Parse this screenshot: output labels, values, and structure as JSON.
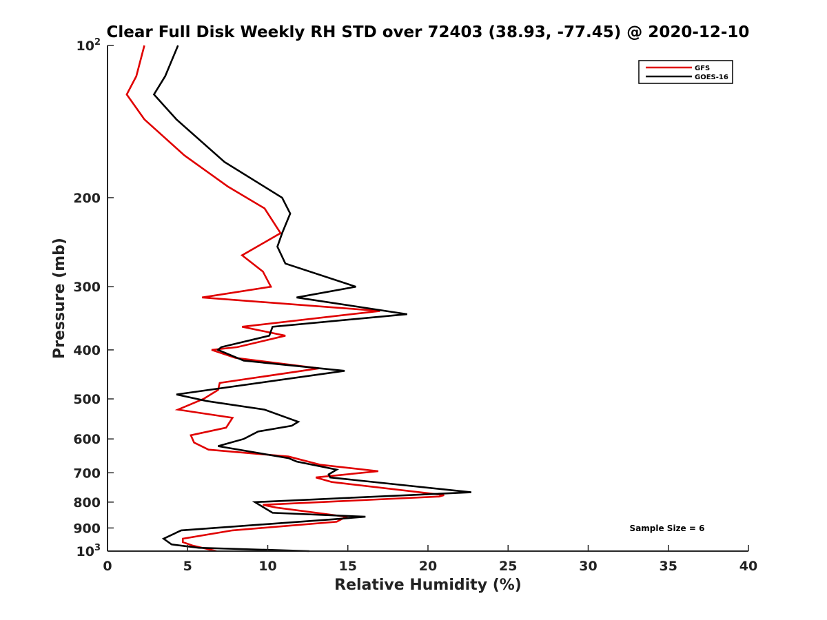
{
  "chart_data": {
    "type": "line",
    "title": "Clear Full Disk Weekly RH STD over 72403 (38.93, -77.45) @ 2020-12-10",
    "xlabel": "Relative Humidity (%)",
    "ylabel": "Pressure (mb)",
    "xlim": [
      0,
      40
    ],
    "ylim": [
      1000,
      100
    ],
    "y_scale": "log",
    "x_ticks": [
      "0",
      "5",
      "10",
      "15",
      "20",
      "25",
      "30",
      "35",
      "40"
    ],
    "y_ticks": [
      {
        "value": 100,
        "base": "10",
        "exp": "2"
      },
      {
        "value": 200,
        "label": "200"
      },
      {
        "value": 300,
        "label": "300"
      },
      {
        "value": 400,
        "label": "400"
      },
      {
        "value": 500,
        "label": "500"
      },
      {
        "value": 600,
        "label": "600"
      },
      {
        "value": 700,
        "label": "700"
      },
      {
        "value": 800,
        "label": "800"
      },
      {
        "value": 900,
        "label": "900"
      },
      {
        "value": 1000,
        "base": "10",
        "exp": "3"
      }
    ],
    "legend_position": "top-right",
    "grid": false,
    "annotation": "Sample Size = 6",
    "series": [
      {
        "name": "GFS",
        "color": "#e00000",
        "points": [
          [
            2.3,
            100
          ],
          [
            1.8,
            115
          ],
          [
            1.2,
            125
          ],
          [
            2.3,
            140
          ],
          [
            4.8,
            165
          ],
          [
            7.5,
            190
          ],
          [
            9.8,
            210
          ],
          [
            10.8,
            235
          ],
          [
            8.4,
            260
          ],
          [
            9.7,
            280
          ],
          [
            10.2,
            300
          ],
          [
            5.9,
            315
          ],
          [
            17.0,
            335
          ],
          [
            8.4,
            360
          ],
          [
            11.1,
            375
          ],
          [
            8.1,
            395
          ],
          [
            6.5,
            400
          ],
          [
            8.0,
            415
          ],
          [
            13.2,
            435
          ],
          [
            7.0,
            465
          ],
          [
            6.9,
            480
          ],
          [
            6.0,
            500
          ],
          [
            4.4,
            525
          ],
          [
            7.8,
            545
          ],
          [
            7.4,
            570
          ],
          [
            5.2,
            590
          ],
          [
            5.4,
            610
          ],
          [
            6.3,
            630
          ],
          [
            11.3,
            650
          ],
          [
            13.3,
            675
          ],
          [
            16.9,
            695
          ],
          [
            13.0,
            715
          ],
          [
            14.0,
            730
          ],
          [
            21.0,
            775
          ],
          [
            20.7,
            780
          ],
          [
            9.7,
            810
          ],
          [
            10.5,
            820
          ],
          [
            14.9,
            855
          ],
          [
            14.3,
            875
          ],
          [
            7.8,
            910
          ],
          [
            4.7,
            945
          ],
          [
            4.7,
            960
          ],
          [
            5.3,
            975
          ],
          [
            6.8,
            1000
          ]
        ]
      },
      {
        "name": "GOES-16",
        "color": "#000000",
        "points": [
          [
            4.4,
            100
          ],
          [
            3.6,
            115
          ],
          [
            2.9,
            125
          ],
          [
            4.3,
            140
          ],
          [
            7.3,
            170
          ],
          [
            10.9,
            200
          ],
          [
            11.4,
            215
          ],
          [
            10.9,
            235
          ],
          [
            10.6,
            250
          ],
          [
            11.1,
            270
          ],
          [
            15.5,
            300
          ],
          [
            11.8,
            315
          ],
          [
            18.7,
            340
          ],
          [
            10.3,
            360
          ],
          [
            10.1,
            375
          ],
          [
            7.1,
            395
          ],
          [
            6.9,
            400
          ],
          [
            8.5,
            420
          ],
          [
            14.8,
            440
          ],
          [
            4.3,
            490
          ],
          [
            6.2,
            505
          ],
          [
            9.8,
            525
          ],
          [
            11.9,
            555
          ],
          [
            11.5,
            565
          ],
          [
            9.4,
            580
          ],
          [
            8.5,
            600
          ],
          [
            6.9,
            620
          ],
          [
            11.3,
            655
          ],
          [
            11.8,
            665
          ],
          [
            14.3,
            690
          ],
          [
            13.8,
            705
          ],
          [
            13.9,
            715
          ],
          [
            22.7,
            765
          ],
          [
            9.2,
            800
          ],
          [
            10.3,
            840
          ],
          [
            16.1,
            855
          ],
          [
            14.1,
            865
          ],
          [
            4.6,
            910
          ],
          [
            3.5,
            945
          ],
          [
            4.0,
            970
          ],
          [
            5.7,
            985
          ],
          [
            12.6,
            1000
          ]
        ]
      }
    ]
  }
}
